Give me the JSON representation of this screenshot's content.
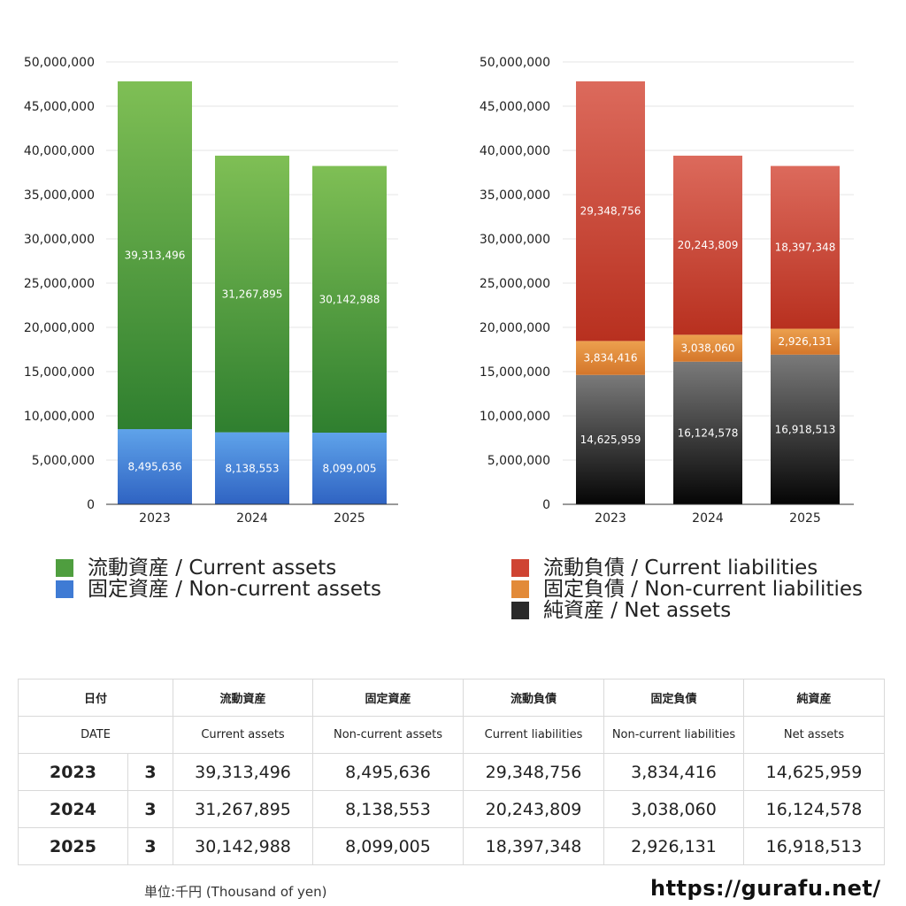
{
  "chart_data": [
    {
      "type": "bar",
      "stacked": true,
      "categories": [
        "2023",
        "2024",
        "2025"
      ],
      "ylim": [
        0,
        50000000
      ],
      "yticks": [
        "0",
        "5,000,000",
        "10,000,000",
        "15,000,000",
        "20,000,000",
        "25,000,000",
        "30,000,000",
        "35,000,000",
        "40,000,000",
        "45,000,000",
        "50,000,000"
      ],
      "series": [
        {
          "name": "固定資産 / Non-current assets",
          "color": "#3f79d2",
          "values": [
            8495636,
            8138553,
            8099005
          ],
          "labels": [
            "8,495,636",
            "8,138,553",
            "8,099,005"
          ]
        },
        {
          "name": "流動資産 / Current assets",
          "color": "#4a9a3c",
          "values": [
            39313496,
            31267895,
            30142988
          ],
          "labels": [
            "39,313,496",
            "31,267,895",
            "30,142,988"
          ]
        }
      ]
    },
    {
      "type": "bar",
      "stacked": true,
      "categories": [
        "2023",
        "2024",
        "2025"
      ],
      "ylim": [
        0,
        50000000
      ],
      "yticks": [
        "0",
        "5,000,000",
        "10,000,000",
        "15,000,000",
        "20,000,000",
        "25,000,000",
        "30,000,000",
        "35,000,000",
        "40,000,000",
        "45,000,000",
        "50,000,000"
      ],
      "series": [
        {
          "name": "純資産 / Net assets",
          "color": "#333333",
          "values": [
            14625959,
            16124578,
            16918513
          ],
          "labels": [
            "14,625,959",
            "16,124,578",
            "16,918,513"
          ]
        },
        {
          "name": "固定負債 / Non-current liabilities",
          "color": "#e0893a",
          "values": [
            3834416,
            3038060,
            2926131
          ],
          "labels": [
            "3,834,416",
            "3,038,060",
            "2,926,131"
          ]
        },
        {
          "name": "流動負債 / Current liabilities",
          "color": "#c9402e",
          "values": [
            29348756,
            20243809,
            18397348
          ],
          "labels": [
            "29,348,756",
            "20,243,809",
            "18,397,348"
          ]
        }
      ]
    }
  ],
  "legend_left": [
    {
      "label": "流動資産 / Current assets",
      "color": "#4f9e3f"
    },
    {
      "label": "固定資産 / Non-current assets",
      "color": "#3f7bd4"
    }
  ],
  "legend_right": [
    {
      "label": "流動負債 / Current liabilities",
      "color": "#cf4433"
    },
    {
      "label": "固定負債 / Non-current liabilities",
      "color": "#e28a38"
    },
    {
      "label": "純資産 / Net assets",
      "color": "#2a2a2a"
    }
  ],
  "table": {
    "headers_ja": [
      "日付",
      "流動資産",
      "固定資産",
      "流動負債",
      "固定負債",
      "純資産"
    ],
    "headers_en": [
      "DATE",
      "Current assets",
      "Non-current assets",
      "Current liabilities",
      "Non-current liabilities",
      "Net assets"
    ],
    "rows": [
      {
        "year": "2023",
        "month": "3",
        "cells": [
          "39,313,496",
          "8,495,636",
          "29,348,756",
          "3,834,416",
          "14,625,959"
        ]
      },
      {
        "year": "2024",
        "month": "3",
        "cells": [
          "31,267,895",
          "8,138,553",
          "20,243,809",
          "3,038,060",
          "16,124,578"
        ]
      },
      {
        "year": "2025",
        "month": "3",
        "cells": [
          "30,142,988",
          "8,099,005",
          "18,397,348",
          "2,926,131",
          "16,918,513"
        ]
      }
    ]
  },
  "unit_note": "単位:千円 (Thousand of yen)",
  "site_url": "https://gurafu.net/"
}
